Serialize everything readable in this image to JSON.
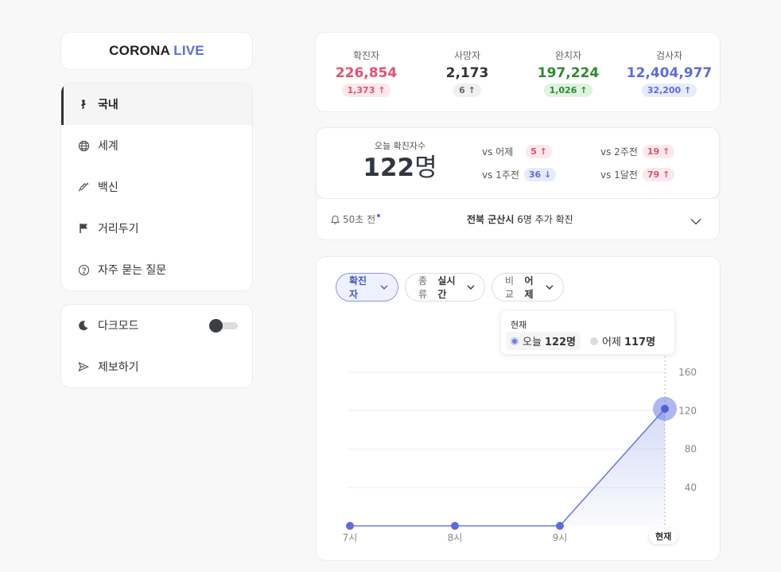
{
  "logo": {
    "part1": "CORONA",
    "part2": "LIVE"
  },
  "nav": {
    "items": [
      {
        "label": "국내",
        "icon": "korea-map-icon"
      },
      {
        "label": "세계",
        "icon": "globe-icon"
      },
      {
        "label": "백신",
        "icon": "syringe-icon"
      },
      {
        "label": "거리두기",
        "icon": "flag-icon"
      },
      {
        "label": "자주 묻는 질문",
        "icon": "question-icon"
      }
    ]
  },
  "settings": {
    "dark_mode": "다크모드",
    "report": "제보하기",
    "dark_mode_on": false
  },
  "stats": [
    {
      "label": "확진자",
      "value": "226,854",
      "delta": "1,373",
      "color": "#e05173",
      "bg": "#fde8ec"
    },
    {
      "label": "사망자",
      "value": "2,173",
      "delta": "6",
      "color": "#333333",
      "bg": "#f0f0f0"
    },
    {
      "label": "완치자",
      "value": "197,224",
      "delta": "1,026",
      "color": "#2e8b2e",
      "bg": "#dff4df"
    },
    {
      "label": "검사자",
      "value": "12,404,977",
      "delta": "32,200",
      "color": "#5b6ddb",
      "bg": "#e8ebfb"
    }
  ],
  "today": {
    "label": "오늘 확진자수",
    "number": "122",
    "unit": "명",
    "comparisons": [
      {
        "label": "vs 어제",
        "value": "5",
        "dir": "up"
      },
      {
        "label": "vs 2주전",
        "value": "19",
        "dir": "up"
      },
      {
        "label": "vs 1주전",
        "value": "36",
        "dir": "down"
      },
      {
        "label": "vs 1달전",
        "value": "79",
        "dir": "up"
      }
    ]
  },
  "notice": {
    "time": "50초 전",
    "region": "전북 군산시",
    "text": " 6명 추가 확진"
  },
  "filters": {
    "metric": "확진자",
    "type_label": "종류",
    "type_value": "실시간",
    "compare_label": "비교",
    "compare_value": "어제"
  },
  "tooltip": {
    "title": "현재",
    "today_label": "오늘",
    "today_value": "122명",
    "yesterday_label": "어제",
    "yesterday_value": "117명"
  },
  "chart_data": {
    "type": "area",
    "categories": [
      "7시",
      "8시",
      "9시",
      "현재"
    ],
    "series": [
      {
        "values": [
          0,
          0,
          0,
          122
        ]
      }
    ],
    "yticks": [
      40,
      80,
      120,
      160
    ],
    "ylim": [
      0,
      160
    ],
    "color": "#6a7de0"
  }
}
